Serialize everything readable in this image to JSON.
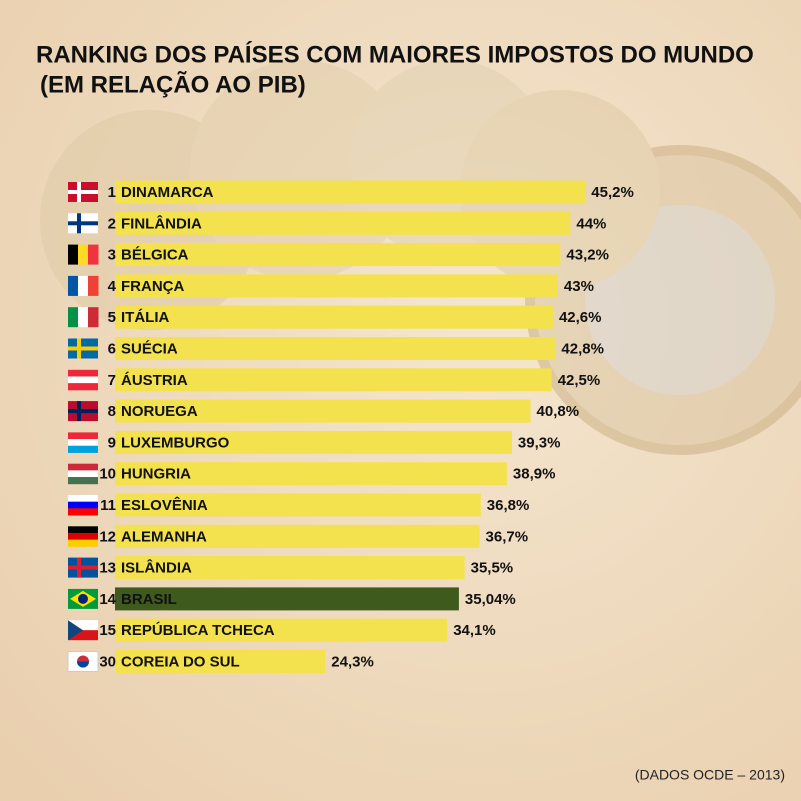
{
  "chart_data": {
    "type": "bar",
    "orientation": "horizontal",
    "title": "RANKING DOS PAÍSES COM MAIORES IMPOSTOS DO MUNDO",
    "subtitle": "(EM RELAÇÃO AO PIB)",
    "source": "(DADOS OCDE – 2013)",
    "ranks": [
      1,
      2,
      3,
      4,
      5,
      6,
      7,
      8,
      9,
      10,
      11,
      12,
      13,
      14,
      15,
      30
    ],
    "categories": [
      "DINAMARCA",
      "FINLÂNDIA",
      "BÉLGICA",
      "FRANÇA",
      "ITÁLIA",
      "SUÉCIA",
      "ÁUSTRIA",
      "NORUEGA",
      "LUXEMBURGO",
      "HUNGRIA",
      "ESLOVÊNIA",
      "ALEMANHA",
      "ISLÂNDIA",
      "BRASIL",
      "REPÚBLICA TCHECA",
      "COREIA DO SUL"
    ],
    "values": [
      45.2,
      44,
      43.2,
      43,
      42.6,
      42.8,
      42.5,
      40.8,
      39.3,
      38.9,
      36.8,
      36.7,
      35.5,
      35.04,
      34.1,
      24.3
    ],
    "value_labels": [
      "45,2%",
      "44%",
      "43,2%",
      "43%",
      "42,6%",
      "42,8%",
      "42,5%",
      "40,8%",
      "39,3%",
      "38,9%",
      "36,8%",
      "36,7%",
      "35,5%",
      "35,04%",
      "34,1%",
      "24,3%"
    ],
    "colors": [
      "#f3e24e",
      "#f3e24e",
      "#f3e24e",
      "#f3e24e",
      "#f3e24e",
      "#f3e24e",
      "#f3e24e",
      "#f3e24e",
      "#f3e24e",
      "#f3e24e",
      "#f3e24e",
      "#f3e24e",
      "#f3e24e",
      "#3e5a1c",
      "#f3e24e",
      "#f3e24e"
    ]
  }
}
